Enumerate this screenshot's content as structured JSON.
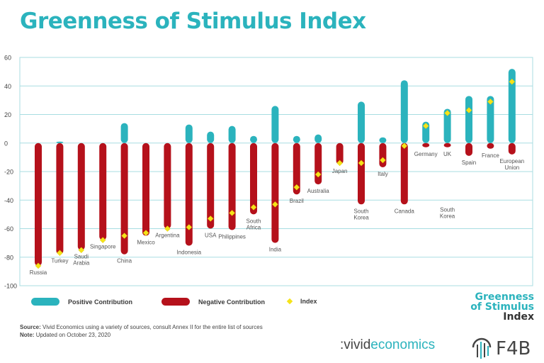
{
  "title": "Greenness of Stimulus Index",
  "chart_data": {
    "type": "bar",
    "ylim": [
      -100,
      60
    ],
    "yticks": [
      60,
      40,
      20,
      0,
      -20,
      -40,
      -60,
      -80,
      -100
    ],
    "categories": [
      "Russia",
      "Turkey",
      "Saudi Arabia",
      "Singapore",
      "China",
      "Mexico",
      "Argentina",
      "Indonesia",
      "USA",
      "Philippines",
      "South Africa",
      "India",
      "Brazil",
      "Australia",
      "Japan",
      "South Korea",
      "Italy",
      "Canada",
      "Germany",
      "UK",
      "Spain",
      "France",
      "European Union"
    ],
    "labels": [
      {
        "text": [
          "Russia"
        ],
        "pos": "below"
      },
      {
        "text": [
          "Turkey"
        ],
        "pos": "below"
      },
      {
        "text": [
          "Saudi",
          "Arabia"
        ],
        "pos": "below"
      },
      {
        "text": [
          "Singapore"
        ],
        "pos": "below"
      },
      {
        "text": [
          "China"
        ],
        "pos": "below"
      },
      {
        "text": [
          "Mexico"
        ],
        "pos": "below"
      },
      {
        "text": [
          "Argentina"
        ],
        "pos": "below"
      },
      {
        "text": [
          "Indonesia"
        ],
        "pos": "below"
      },
      {
        "text": [
          "USA"
        ],
        "pos": "below"
      },
      {
        "text": [
          "Philippines"
        ],
        "pos": "below"
      },
      {
        "text": [
          "South",
          "Africa"
        ],
        "pos": "below"
      },
      {
        "text": [
          "India"
        ],
        "pos": "below"
      },
      {
        "text": [
          "Brazil"
        ],
        "pos": "below"
      },
      {
        "text": [
          "Australia"
        ],
        "pos": "below"
      },
      {
        "text": [
          "Japan"
        ],
        "pos": "below"
      },
      {
        "text": [
          "South",
          "Korea"
        ],
        "pos": "below"
      },
      {
        "text": [
          "Italy"
        ],
        "pos": "below"
      },
      {
        "text": [
          "Canada"
        ],
        "pos": "below"
      },
      {
        "text": [
          "Germany"
        ],
        "pos": "below"
      },
      {
        "text": [
          "UK"
        ],
        "pos": "below"
      },
      {
        "text": [
          "Spain"
        ],
        "pos": "below"
      },
      {
        "text": [
          "France"
        ],
        "pos": "below"
      },
      {
        "text": [
          "European",
          "Union"
        ],
        "pos": "below"
      }
    ],
    "extra_labels": [
      {
        "text": [
          "South",
          "Korea"
        ],
        "category": "UK",
        "value": -48
      }
    ],
    "series": [
      {
        "name": "Positive Contribution",
        "color": "#2bb3bd",
        "values": [
          0,
          1,
          0,
          0,
          14,
          0,
          0,
          13,
          8,
          12,
          5,
          26,
          5,
          6,
          0,
          29,
          4,
          44,
          15,
          24,
          33,
          33,
          52
        ]
      },
      {
        "name": "Negative Contribution",
        "color": "#b5111b",
        "values": [
          -86,
          -78,
          -75,
          -68,
          -78,
          -65,
          -60,
          -72,
          -60,
          -61,
          -50,
          -70,
          -36,
          -29,
          -15,
          -43,
          -17,
          -43,
          -3,
          -3,
          -9,
          -4,
          -8
        ]
      },
      {
        "name": "Index",
        "color": "#f5e31a",
        "values": [
          -86,
          -77,
          -75,
          -68,
          -65,
          -63,
          -60,
          -59,
          -53,
          -49,
          -45,
          -43,
          -31,
          -22,
          -14,
          -14,
          -12,
          -2,
          12,
          21,
          23,
          29,
          43
        ]
      }
    ]
  },
  "legend": {
    "positive": "Positive Contribution",
    "negative": "Negative Contribution",
    "index": "Index"
  },
  "source": {
    "label": "Source:",
    "text": "Vivid Economics using a variety of sources, consult Annex II for the entire list of sources",
    "note_label": "Note:",
    "note_text": "Updated on October 23, 2020"
  },
  "branding": {
    "index_logo": [
      "Greenness",
      "of Stimulus",
      "Index"
    ],
    "vivid_prefix": ":vivid",
    "vivid_suffix": "economics",
    "f4b": "F4B"
  },
  "colors": {
    "teal": "#2bb3bd",
    "red": "#b5111b",
    "yellow": "#f5e31a",
    "grid": "#a8dde2"
  }
}
